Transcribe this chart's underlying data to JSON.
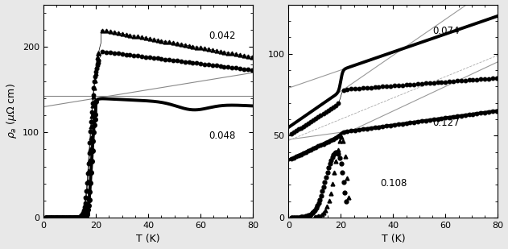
{
  "left_panel": {
    "xlabel": "T (K)",
    "ylabel": "$\\rho_a$ ($\\mu\\Omega$ cm)",
    "xlim": [
      0,
      80
    ],
    "ylim": [
      0,
      250
    ],
    "yticks": [
      0,
      100,
      200
    ],
    "xticks": [
      0,
      20,
      40,
      60,
      80
    ],
    "label_042": "0.042",
    "label_048": "0.048"
  },
  "right_panel": {
    "xlabel": "T (K)",
    "xlim": [
      0,
      80
    ],
    "ylim": [
      0,
      130
    ],
    "yticks": [
      0,
      50,
      100
    ],
    "xticks": [
      0,
      20,
      40,
      60,
      80
    ],
    "label_074": "0.074",
    "label_108": "0.108",
    "label_127": "0.127"
  },
  "bg_color": "#e8e8e8",
  "panel_bg": "#ffffff"
}
